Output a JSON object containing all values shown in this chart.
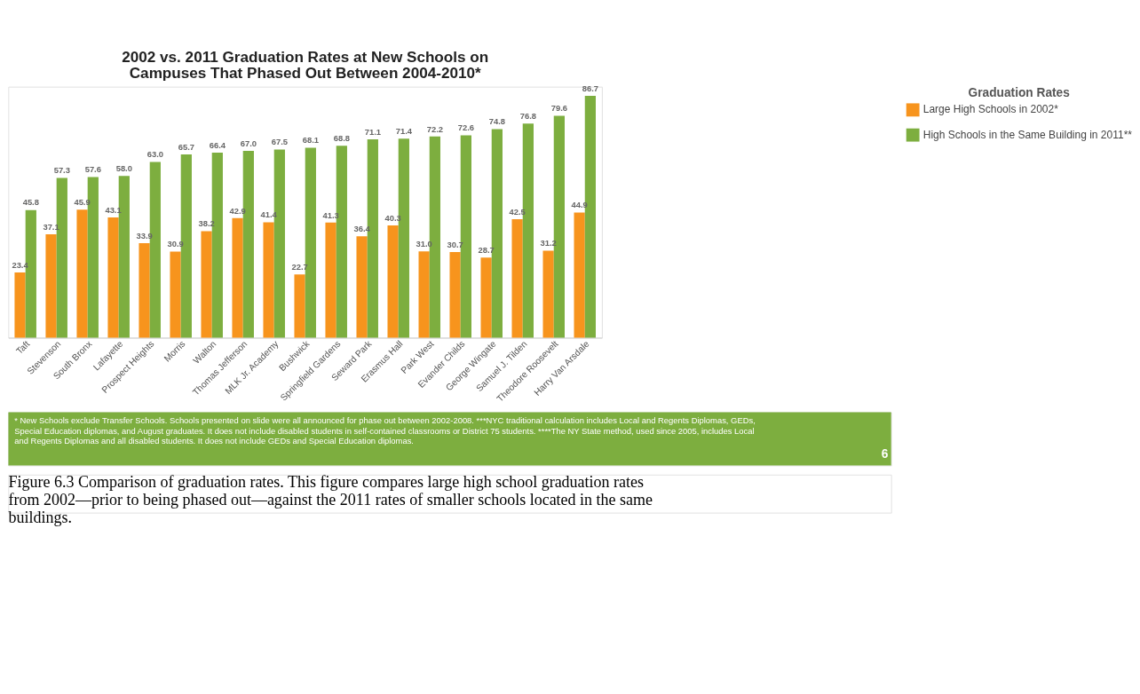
{
  "chart_data": {
    "type": "bar",
    "title": "2002 vs. 2011 Graduation Rates at New Schools on Campuses That Phased Out Between 2004-2010*",
    "categories": [
      "Taft",
      "Stevenson",
      "South Bronx",
      "Lafayette",
      "Prospect Heights",
      "Morris",
      "Walton",
      "Thomas Jefferson",
      "MLK Jr. Academy",
      "Bushwick",
      "Springfield Gardens",
      "Seward Park",
      "Erasmus Hall",
      "Park West",
      "Evander Childs",
      "George Wingate",
      "Samuel J. Tilden",
      "Theodore Roosevelt",
      "Harry Van Arsdale"
    ],
    "series": [
      {
        "name": "Large High Schools in 2002*",
        "color": "#f7941d",
        "values": [
          23.4,
          37.1,
          45.9,
          43.1,
          33.9,
          30.9,
          38.2,
          42.9,
          41.4,
          22.7,
          41.3,
          36.4,
          40.3,
          31.0,
          30.7,
          28.7,
          42.5,
          31.2,
          44.9
        ],
        "value_labels": [
          "23.4",
          "37.1",
          "45.9",
          "43.1",
          "33.9",
          "30.9",
          "38.2",
          "42.9",
          "41.4",
          "22.7",
          "41.3",
          "36.4",
          "40.3",
          "31.0",
          "30.7",
          "28.7",
          "42.5",
          "31.2",
          "44.9"
        ]
      },
      {
        "name": "High Schools in the Same Building in 2011**",
        "color": "#7dae3f",
        "values": [
          45.8,
          57.3,
          57.6,
          58.0,
          63.0,
          65.7,
          66.4,
          67.0,
          67.5,
          68.1,
          68.8,
          71.1,
          71.4,
          72.2,
          72.6,
          74.8,
          76.8,
          79.6,
          86.7
        ],
        "value_labels": [
          "45.8",
          "57.3",
          "57.6",
          "58.0",
          "63.0",
          "65.7",
          "66.4",
          "67.0",
          "67.5",
          "68.1",
          "68.8",
          "71.1",
          "71.4",
          "72.2",
          "72.6",
          "74.8",
          "76.8",
          "79.6",
          "86.7"
        ]
      }
    ],
    "ylim": [
      0,
      90
    ],
    "tick_labels": "x",
    "legend": "right",
    "legend_title": "Graduation Rates",
    "grid": false,
    "annotations": [
      "* New Schools exclude Transfer Schools. Schools presented on slide  were all announced for phase out between 2002-2008.  ***NYC traditional calculation includes Local and Regents Diplomas, GEDs, Special Education diplomas, and August graduates. It does not include disabled students in self-contained classrooms or District 75 students. ****The NY State method, used since 2005, includes Local and Regents Diplomas and all disabled students. It does not include GEDs and Special Education diplomas.",
      "6",
      "Figure 6.3 Comparison of graduation rates. This figure compares large high school graduation rates from 2002—prior to being phased out—against the 2011 rates of smaller schools located in the same buildings."
    ]
  }
}
